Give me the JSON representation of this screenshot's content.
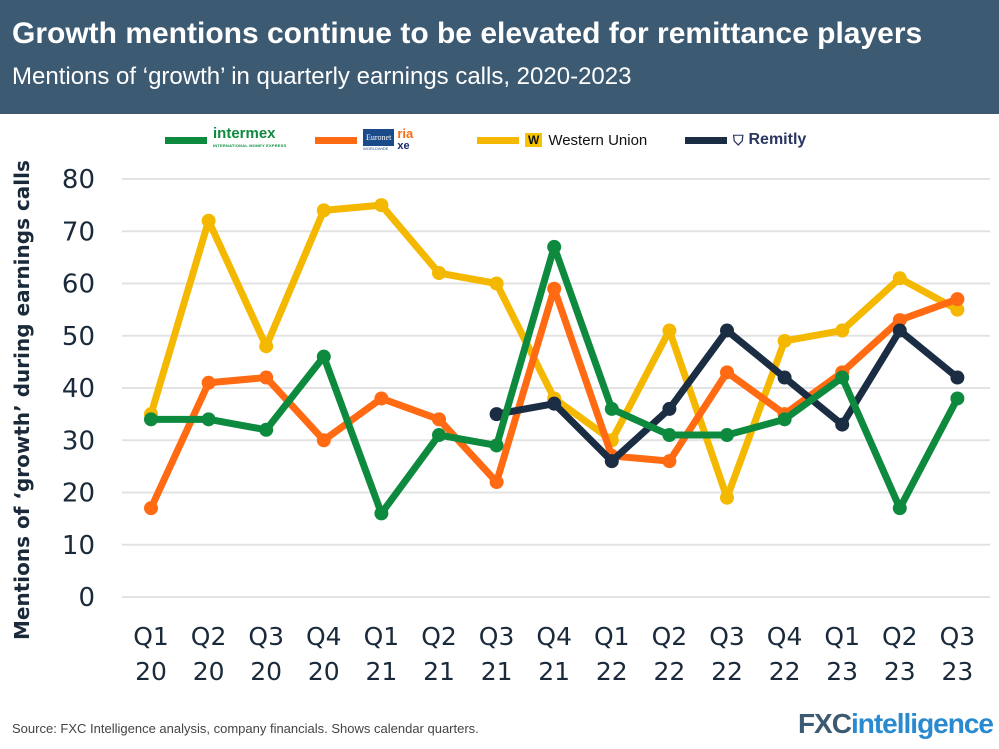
{
  "header": {
    "title": "Growth mentions continue to be elevated for remittance players",
    "subtitle": "Mentions of ‘growth’ in quarterly earnings calls, 2020-2023"
  },
  "legend": {
    "intermex": "intermex",
    "intermex_tag": "INTERNATIONAL MONEY EXPRESS",
    "euronet": "Euronet",
    "euronet_tag": "WORLDWIDE",
    "ria": "ria",
    "xe": "xe",
    "western_union": "Western Union",
    "remitly": "Remitly"
  },
  "source": "Source: FXC Intelligence analysis, company financials. Shows calendar quarters.",
  "brand": {
    "a": "FXC",
    "b": "intelligence"
  },
  "chart_data": {
    "type": "line",
    "title": "Growth mentions continue to be elevated for remittance players",
    "subtitle": "Mentions of ‘growth’ in quarterly earnings calls, 2020-2023",
    "xlabel": "",
    "ylabel": "Mentions of ‘growth’ during earnings calls",
    "ylim": [
      0,
      80
    ],
    "yticks": [
      0,
      10,
      20,
      30,
      40,
      50,
      60,
      70,
      80
    ],
    "grid": true,
    "legend_position": "top",
    "categories": [
      [
        "Q1",
        "20"
      ],
      [
        "Q2",
        "20"
      ],
      [
        "Q3",
        "20"
      ],
      [
        "Q4",
        "20"
      ],
      [
        "Q1",
        "21"
      ],
      [
        "Q2",
        "21"
      ],
      [
        "Q3",
        "21"
      ],
      [
        "Q4",
        "21"
      ],
      [
        "Q1",
        "22"
      ],
      [
        "Q2",
        "22"
      ],
      [
        "Q3",
        "22"
      ],
      [
        "Q4",
        "22"
      ],
      [
        "Q1",
        "23"
      ],
      [
        "Q2",
        "23"
      ],
      [
        "Q3",
        "23"
      ]
    ],
    "series": [
      {
        "name": "Western Union",
        "color": "#f5b800",
        "values": [
          35,
          72,
          48,
          74,
          75,
          62,
          60,
          38,
          30,
          51,
          19,
          49,
          51,
          61,
          55
        ]
      },
      {
        "name": "Euronet (Ria, xe)",
        "color": "#ff6a13",
        "values": [
          17,
          41,
          42,
          30,
          38,
          34,
          22,
          59,
          27,
          26,
          43,
          35,
          43,
          53,
          57
        ]
      },
      {
        "name": "Remitly",
        "color": "#1b2d42",
        "values": [
          null,
          null,
          null,
          null,
          null,
          null,
          35,
          37,
          26,
          36,
          51,
          42,
          33,
          51,
          42
        ]
      },
      {
        "name": "Intermex",
        "color": "#0d8a3e",
        "values": [
          34,
          34,
          32,
          46,
          16,
          31,
          29,
          67,
          36,
          31,
          31,
          34,
          42,
          17,
          38
        ]
      }
    ]
  }
}
